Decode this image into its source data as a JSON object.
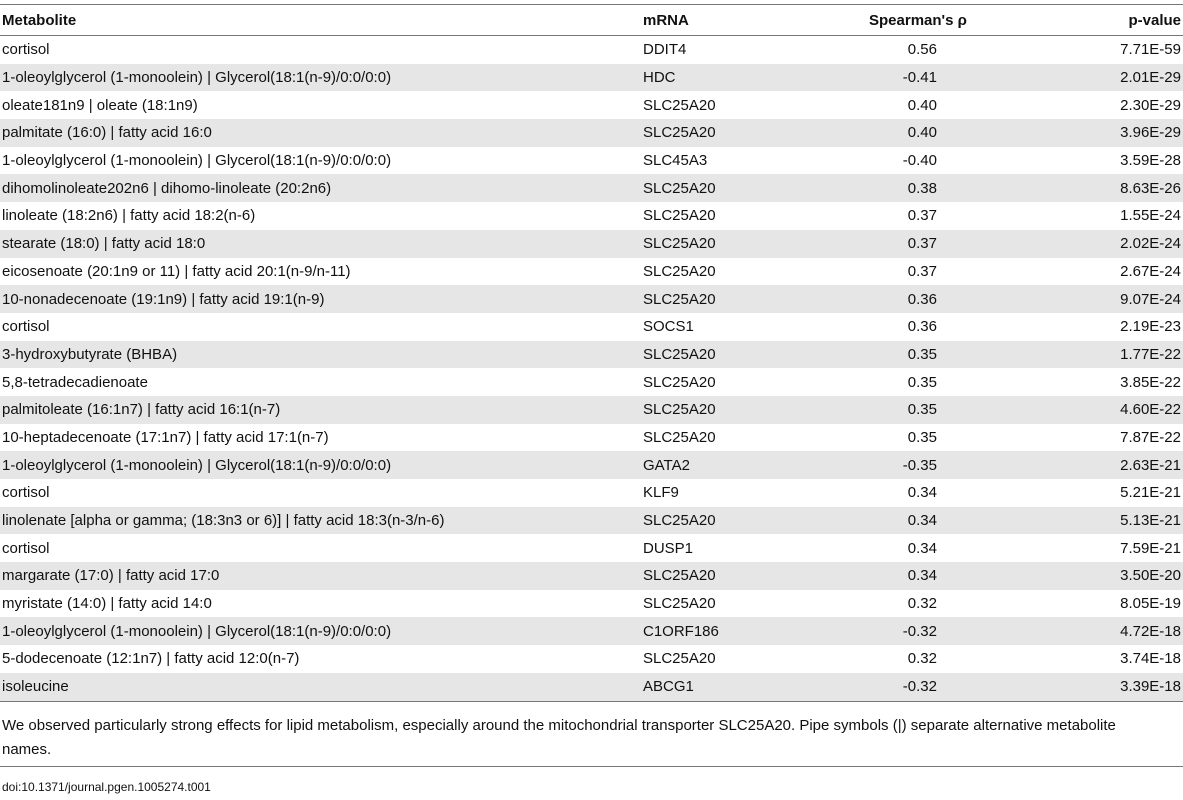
{
  "table": {
    "headers": {
      "metabolite": "Metabolite",
      "mrna": "mRNA",
      "rho": "Spearman's ρ",
      "pvalue": "p-value"
    },
    "rows": [
      {
        "metabolite": "cortisol",
        "mrna": "DDIT4",
        "rho": "0.56",
        "pvalue": "7.71E-59"
      },
      {
        "metabolite": "1-oleoylglycerol (1-monoolein) | Glycerol(18:1(n-9)/0:0/0:0)",
        "mrna": "HDC",
        "rho": "-0.41",
        "pvalue": "2.01E-29"
      },
      {
        "metabolite": "oleate181n9 | oleate (18:1n9)",
        "mrna": "SLC25A20",
        "rho": "0.40",
        "pvalue": "2.30E-29"
      },
      {
        "metabolite": "palmitate (16:0) | fatty acid 16:0",
        "mrna": "SLC25A20",
        "rho": "0.40",
        "pvalue": "3.96E-29"
      },
      {
        "metabolite": "1-oleoylglycerol (1-monoolein) | Glycerol(18:1(n-9)/0:0/0:0)",
        "mrna": "SLC45A3",
        "rho": "-0.40",
        "pvalue": "3.59E-28"
      },
      {
        "metabolite": "dihomolinoleate202n6 | dihomo-linoleate (20:2n6)",
        "mrna": "SLC25A20",
        "rho": "0.38",
        "pvalue": "8.63E-26"
      },
      {
        "metabolite": "linoleate (18:2n6) | fatty acid 18:2(n-6)",
        "mrna": "SLC25A20",
        "rho": "0.37",
        "pvalue": "1.55E-24"
      },
      {
        "metabolite": "stearate (18:0) | fatty acid 18:0",
        "mrna": "SLC25A20",
        "rho": "0.37",
        "pvalue": "2.02E-24"
      },
      {
        "metabolite": "eicosenoate (20:1n9 or 11) | fatty acid 20:1(n-9/n-11)",
        "mrna": "SLC25A20",
        "rho": "0.37",
        "pvalue": "2.67E-24"
      },
      {
        "metabolite": "10-nonadecenoate (19:1n9) | fatty acid 19:1(n-9)",
        "mrna": "SLC25A20",
        "rho": "0.36",
        "pvalue": "9.07E-24"
      },
      {
        "metabolite": "cortisol",
        "mrna": "SOCS1",
        "rho": "0.36",
        "pvalue": "2.19E-23"
      },
      {
        "metabolite": "3-hydroxybutyrate (BHBA)",
        "mrna": "SLC25A20",
        "rho": "0.35",
        "pvalue": "1.77E-22"
      },
      {
        "metabolite": "5,8-tetradecadienoate",
        "mrna": "SLC25A20",
        "rho": "0.35",
        "pvalue": "3.85E-22"
      },
      {
        "metabolite": "palmitoleate (16:1n7) | fatty acid 16:1(n-7)",
        "mrna": "SLC25A20",
        "rho": "0.35",
        "pvalue": "4.60E-22"
      },
      {
        "metabolite": "10-heptadecenoate (17:1n7) | fatty acid 17:1(n-7)",
        "mrna": "SLC25A20",
        "rho": "0.35",
        "pvalue": "7.87E-22"
      },
      {
        "metabolite": "1-oleoylglycerol (1-monoolein) | Glycerol(18:1(n-9)/0:0/0:0)",
        "mrna": "GATA2",
        "rho": "-0.35",
        "pvalue": "2.63E-21"
      },
      {
        "metabolite": "cortisol",
        "mrna": "KLF9",
        "rho": "0.34",
        "pvalue": "5.21E-21"
      },
      {
        "metabolite": "linolenate [alpha or gamma; (18:3n3 or 6)] | fatty acid 18:3(n-3/n-6)",
        "mrna": "SLC25A20",
        "rho": "0.34",
        "pvalue": "5.13E-21"
      },
      {
        "metabolite": "cortisol",
        "mrna": "DUSP1",
        "rho": "0.34",
        "pvalue": "7.59E-21"
      },
      {
        "metabolite": "margarate (17:0) | fatty acid 17:0",
        "mrna": "SLC25A20",
        "rho": "0.34",
        "pvalue": "3.50E-20"
      },
      {
        "metabolite": "myristate (14:0) | fatty acid 14:0",
        "mrna": "SLC25A20",
        "rho": "0.32",
        "pvalue": "8.05E-19"
      },
      {
        "metabolite": "1-oleoylglycerol (1-monoolein) | Glycerol(18:1(n-9)/0:0/0:0)",
        "mrna": "C1ORF186",
        "rho": "-0.32",
        "pvalue": "4.72E-18"
      },
      {
        "metabolite": "5-dodecenoate (12:1n7) | fatty acid 12:0(n-7)",
        "mrna": "SLC25A20",
        "rho": "0.32",
        "pvalue": "3.74E-18"
      },
      {
        "metabolite": "isoleucine",
        "mrna": "ABCG1",
        "rho": "-0.32",
        "pvalue": "3.39E-18"
      }
    ]
  },
  "footnote": "We observed particularly strong effects for lipid metabolism, especially around the mitochondrial transporter SLC25A20. Pipe symbols (|) separate alternative metabolite names.",
  "doi": "doi:10.1371/journal.pgen.1005274.t001"
}
